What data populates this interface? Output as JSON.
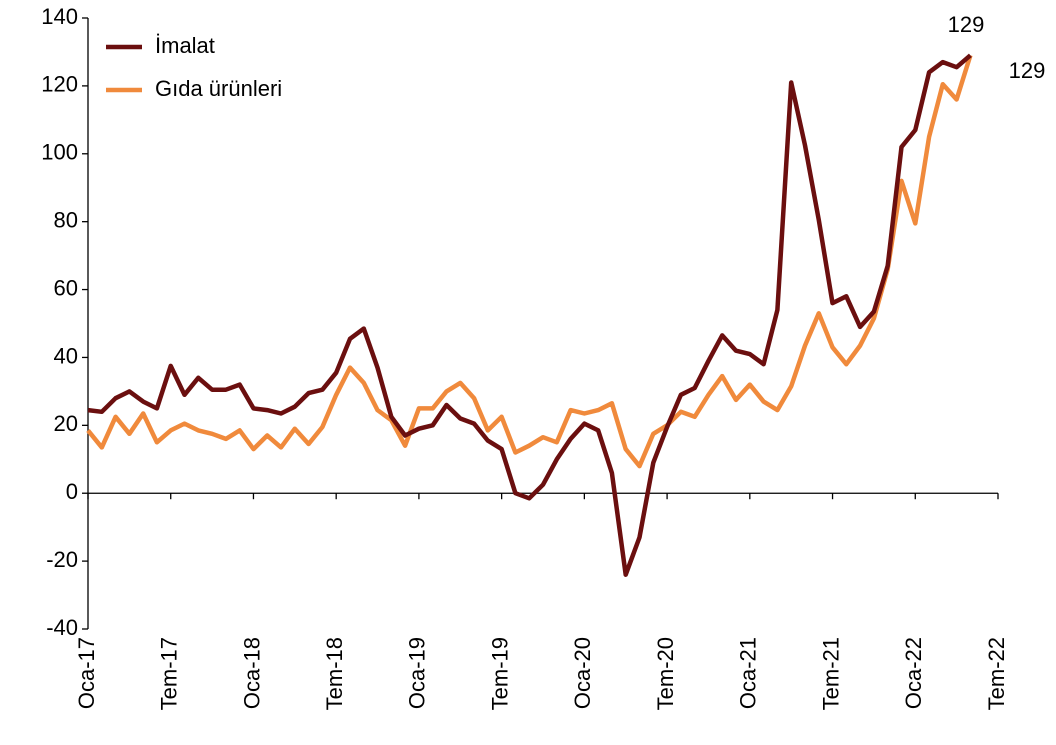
{
  "chart_data": {
    "type": "line",
    "categories": [
      "Oca-17",
      null,
      null,
      null,
      null,
      null,
      "Tem-17",
      null,
      null,
      null,
      null,
      null,
      "Oca-18",
      null,
      null,
      null,
      null,
      null,
      "Tem-18",
      null,
      null,
      null,
      null,
      null,
      "Oca-19",
      null,
      null,
      null,
      null,
      null,
      "Tem-19",
      null,
      null,
      null,
      null,
      null,
      "Oca-20",
      null,
      null,
      null,
      null,
      null,
      "Tem-20",
      null,
      null,
      null,
      null,
      null,
      "Oca-21",
      null,
      null,
      null,
      null,
      null,
      "Tem-21",
      null,
      null,
      null,
      null,
      null,
      "Oca-22",
      null,
      null,
      null,
      null,
      null,
      "Tem-22"
    ],
    "series": [
      {
        "name": "İmalat",
        "color": "#6b0f0f",
        "values": [
          24.5,
          24,
          28,
          30,
          27,
          25,
          37.5,
          29,
          34,
          30.5,
          30.5,
          32,
          25,
          24.5,
          23.5,
          25.5,
          29.5,
          30.5,
          35.5,
          45.5,
          48.5,
          37,
          22.5,
          17,
          19,
          20,
          26,
          22,
          20.5,
          15.5,
          13,
          0,
          -1.5,
          2.5,
          10,
          16,
          20.5,
          18.5,
          6,
          -24,
          -13,
          9,
          19.5,
          29,
          31,
          39,
          46.5,
          42,
          41,
          38,
          54,
          121,
          102.5,
          80.5,
          56,
          58,
          49,
          53.5,
          67,
          102,
          107,
          124,
          127,
          125.5,
          129,
          null,
          null
        ]
      },
      {
        "name": "Gıda ürünleri",
        "color": "#f08a3c",
        "values": [
          18.5,
          13.5,
          22.5,
          17.5,
          23.5,
          15,
          18.5,
          20.5,
          18.5,
          17.5,
          16,
          18.5,
          13,
          17,
          13.5,
          19,
          14.5,
          19.5,
          29,
          37,
          32.5,
          24.5,
          21.5,
          14,
          25,
          25,
          30,
          32.5,
          28,
          18.5,
          22.5,
          12,
          14,
          16.5,
          15,
          24.5,
          23.5,
          24.5,
          26.5,
          13,
          8,
          17.5,
          20,
          24,
          22.5,
          29,
          34.5,
          27.5,
          32,
          27,
          24.5,
          31.5,
          43.5,
          53,
          43,
          38,
          43.5,
          51.5,
          66,
          92,
          79.5,
          105,
          120.5,
          116,
          129,
          null,
          null
        ]
      }
    ],
    "annotations": [
      "129",
      "129"
    ],
    "ylim": [
      -40,
      140
    ],
    "yticks": [
      -40,
      -20,
      0,
      20,
      40,
      60,
      80,
      100,
      120,
      140
    ],
    "legend": "upper left"
  }
}
